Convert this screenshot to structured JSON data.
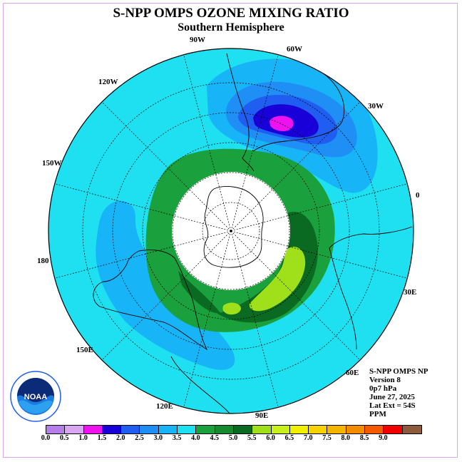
{
  "title": "S-NPP OMPS OZONE MIXING RATIO",
  "subtitle": "Southern Hemisphere",
  "longitude_labels": {
    "lon_90w": "90W",
    "lon_60w": "60W",
    "lon_30w": "30W",
    "lon_0": "0",
    "lon_30e": "30E",
    "lon_60e": "60E",
    "lon_90e": "90E",
    "lon_120e": "120E",
    "lon_150e": "150E",
    "lon_180": "180",
    "lon_150w": "150W",
    "lon_120w": "120W"
  },
  "info": {
    "line1": "S-NPP OMPS NP",
    "line2": "Version 8",
    "line3": "0p7 hPa",
    "line4": "June 27, 2025",
    "line5": "Lat Ext = 54S",
    "line6": "PPM"
  },
  "logo": {
    "text": "NOAA"
  },
  "colorbar": {
    "colors": [
      "#b57ee8",
      "#d9a6f2",
      "#ee12ee",
      "#1a00d8",
      "#1f5ef0",
      "#1f8ef5",
      "#17b4f7",
      "#1ee0f0",
      "#1aa03c",
      "#158a2e",
      "#0b6a22",
      "#9fe01a",
      "#c8f01a",
      "#f0f000",
      "#f5d200",
      "#f5b400",
      "#f58c00",
      "#f55a00",
      "#f00000",
      "#8c5a3c"
    ],
    "ticks": [
      "0.0",
      "0.5",
      "1.0",
      "1.5",
      "2.0",
      "2.5",
      "3.0",
      "3.5",
      "4.0",
      "4.5",
      "5.0",
      "5.5",
      "6.0",
      "6.5",
      "7.0",
      "7.5",
      "8.0",
      "8.5",
      "9.0"
    ]
  }
}
